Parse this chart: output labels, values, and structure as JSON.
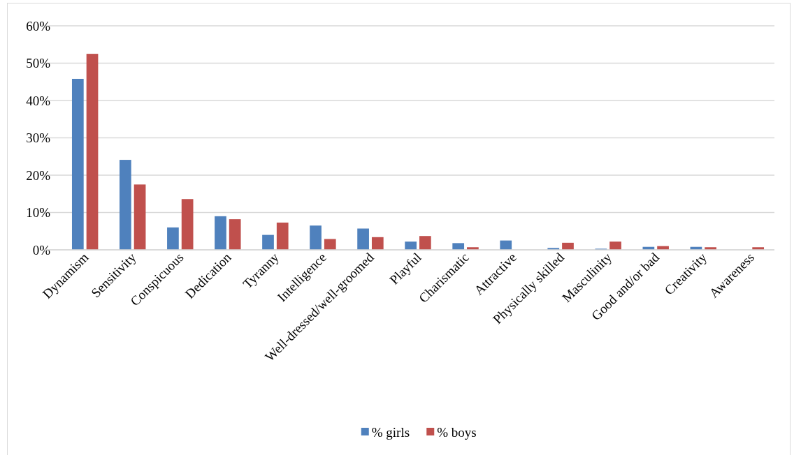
{
  "chart_data": {
    "type": "bar",
    "categories": [
      "Dynamism",
      "Sensitivity",
      "Conspicuous",
      "Dedication",
      "Tyranny",
      "Intelligence",
      "Well-dressed/well-groomed",
      "Playful",
      "Charismatic",
      "Attractive",
      "Physically skilled",
      "Masculinity",
      "Good and/or bad",
      "Creativity",
      "Awareness"
    ],
    "series": [
      {
        "name": "% girls",
        "color": "#4f81bd",
        "values": [
          45.8,
          24.1,
          6.0,
          9.0,
          4.0,
          6.5,
          5.7,
          2.2,
          1.8,
          2.5,
          0.5,
          0.3,
          0.8,
          0.8,
          null
        ]
      },
      {
        "name": "% boys",
        "color": "#c0504d",
        "values": [
          52.5,
          17.5,
          13.6,
          8.2,
          7.3,
          2.9,
          3.4,
          3.7,
          0.7,
          0,
          1.9,
          2.2,
          1.0,
          0.7,
          0.7
        ]
      }
    ],
    "ylim": [
      0,
      60
    ],
    "yticks": [
      {
        "value": 0,
        "label": "0%"
      },
      {
        "value": 10,
        "label": "10%"
      },
      {
        "value": 20,
        "label": "20%"
      },
      {
        "value": 30,
        "label": "30%"
      },
      {
        "value": 40,
        "label": "40%"
      },
      {
        "value": 50,
        "label": "50%"
      },
      {
        "value": 60,
        "label": "60%"
      }
    ],
    "grid": "y",
    "legend": "bottom"
  }
}
